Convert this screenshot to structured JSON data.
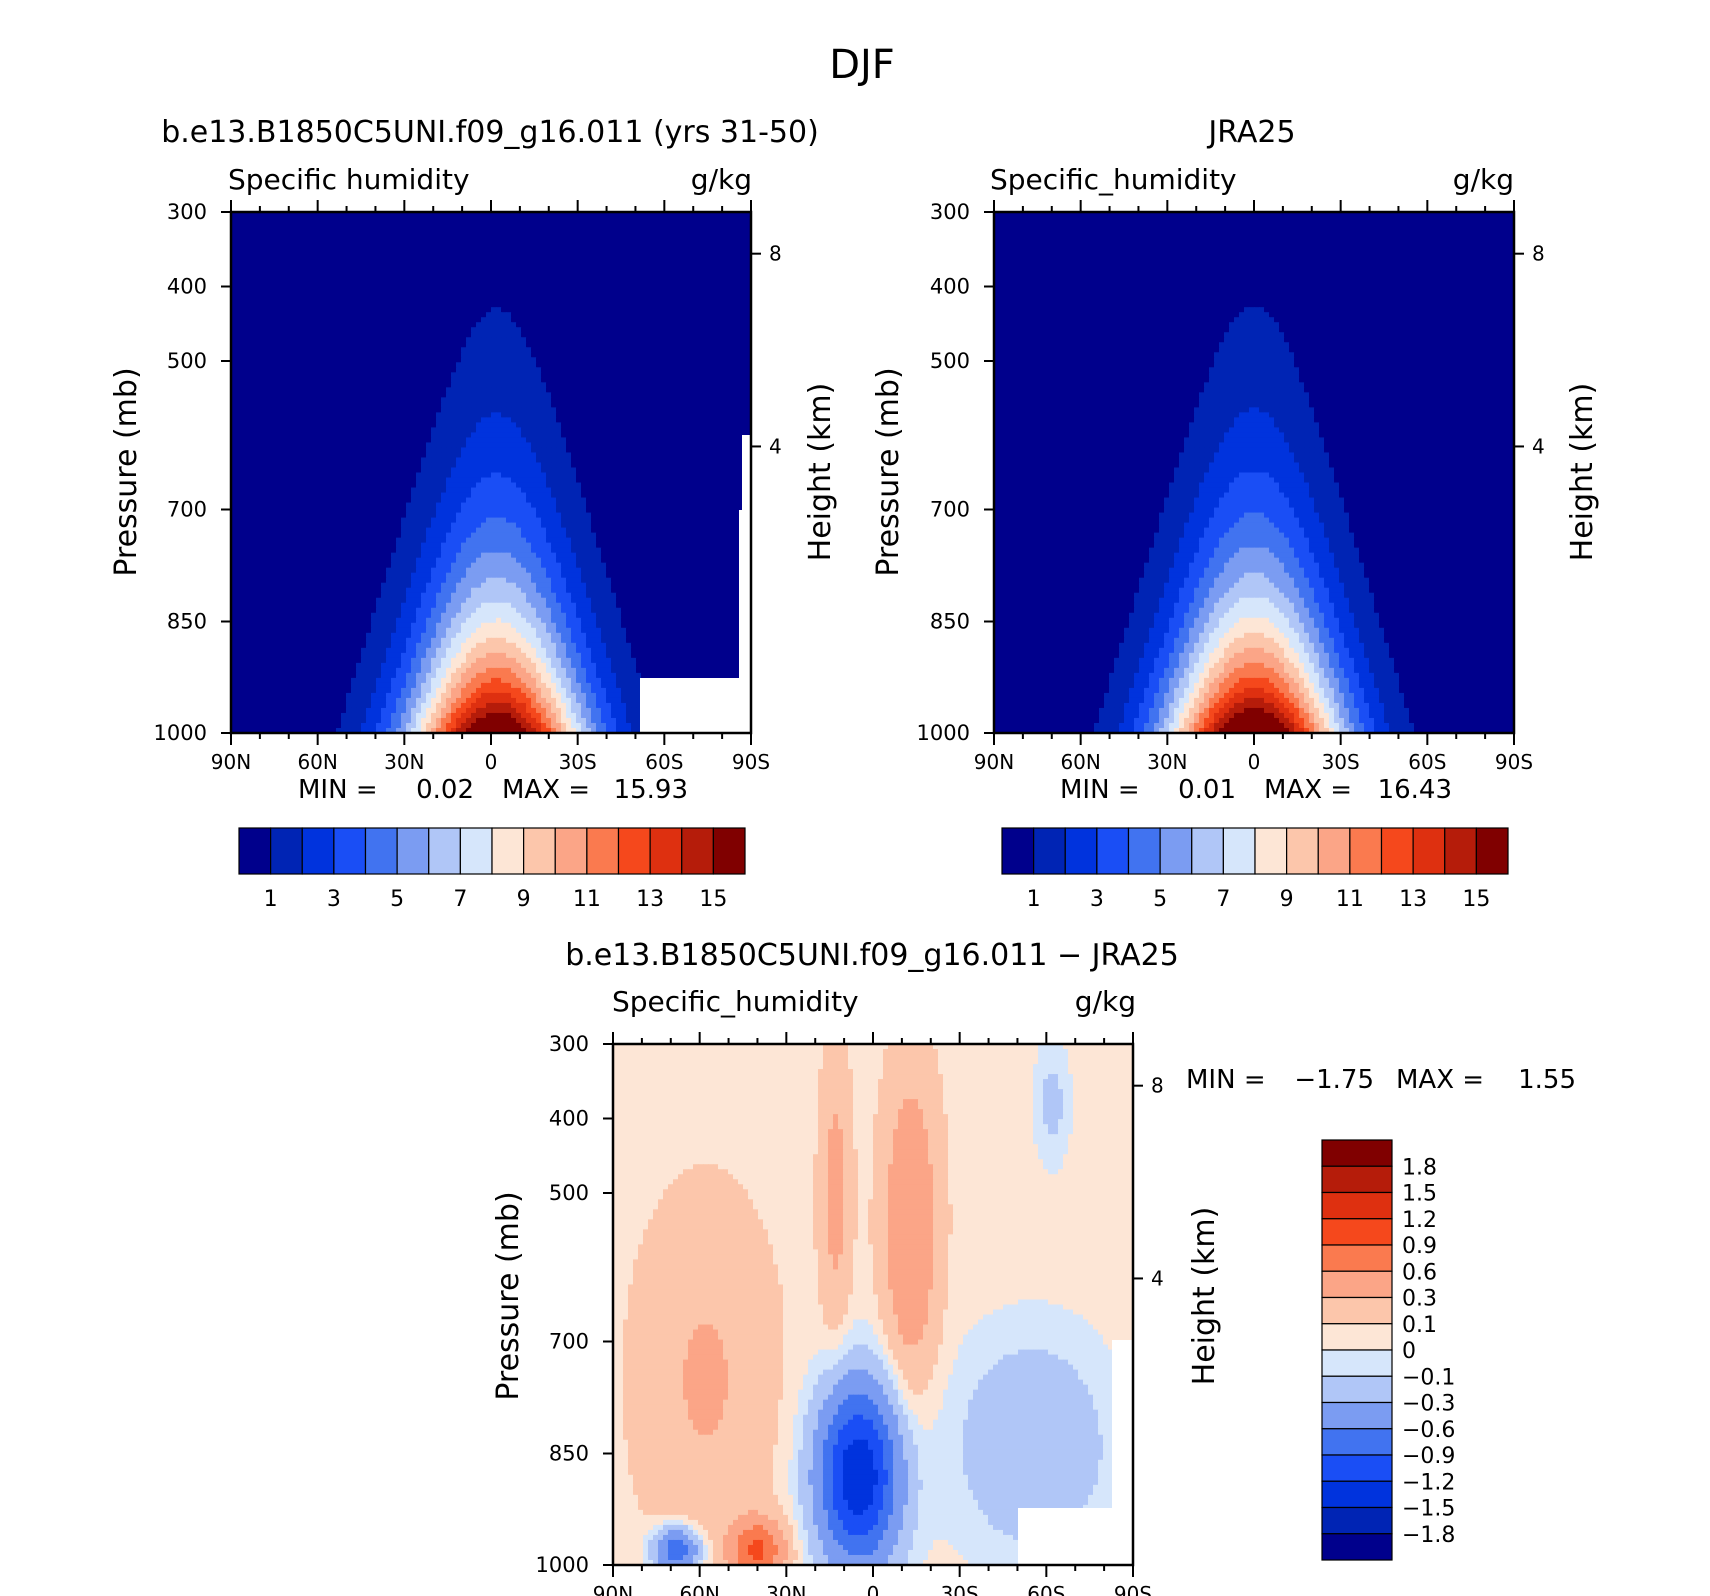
{
  "figure": {
    "title": "DJF"
  },
  "colors": {
    "seq": [
      "#00008c",
      "#0024b4",
      "#0033dd",
      "#1a4ef5",
      "#4173f0",
      "#7b9cf2",
      "#b0c6f7",
      "#d6e6fb",
      "#fde6d6",
      "#fcc6ab",
      "#fba587",
      "#fa7a4f",
      "#f5481c",
      "#de3010",
      "#b51c0a",
      "#800000"
    ],
    "div": [
      "#00008c",
      "#0024b4",
      "#0033dd",
      "#1a4ef5",
      "#4173f0",
      "#7b9cf2",
      "#b0c6f7",
      "#d6e6fb",
      "#fde6d6",
      "#fcc6ab",
      "#fba587",
      "#fa7a4f",
      "#f5481c",
      "#de3010",
      "#b51c0a",
      "#800000"
    ]
  },
  "chart_data": [
    {
      "type": "heatmap",
      "title": "b.e13.B1850C5UNI.f09_g16.011 (yrs 31-50)",
      "left_label": "Specific humidity",
      "right_label": "g/kg",
      "ylabel": "Pressure (mb)",
      "y2label": "Height (km)",
      "yticks": [
        "300",
        "400",
        "500",
        "700",
        "850",
        "1000"
      ],
      "y2ticks": [
        "8",
        "4"
      ],
      "xticks": [
        "90N",
        "60N",
        "30N",
        "0",
        "30S",
        "60S",
        "90S"
      ],
      "min_label": "MIN =",
      "min_value": "0.02",
      "max_label": "MAX =",
      "max_value": "15.93",
      "colorbar_labels": [
        "1",
        "3",
        "5",
        "7",
        "9",
        "11",
        "13",
        "15"
      ],
      "ylim": [
        1000,
        300
      ],
      "xlim": [
        90,
        -90
      ],
      "peak": {
        "lat": -2,
        "value": 15.93
      },
      "levels": [
        1,
        2,
        3,
        4,
        5,
        6,
        7,
        8,
        9,
        10,
        11,
        12,
        13,
        14,
        15
      ]
    },
    {
      "type": "heatmap",
      "title": "JRA25",
      "left_label": "Specific_humidity",
      "right_label": "g/kg",
      "ylabel": "Pressure (mb)",
      "y2label": "Height (km)",
      "yticks": [
        "300",
        "400",
        "500",
        "700",
        "850",
        "1000"
      ],
      "y2ticks": [
        "8",
        "4"
      ],
      "xticks": [
        "90N",
        "60N",
        "30N",
        "0",
        "30S",
        "60S",
        "90S"
      ],
      "min_label": "MIN =",
      "min_value": "0.01",
      "max_label": "MAX =",
      "max_value": "16.43",
      "colorbar_labels": [
        "1",
        "3",
        "5",
        "7",
        "9",
        "11",
        "13",
        "15"
      ],
      "ylim": [
        1000,
        300
      ],
      "xlim": [
        90,
        -90
      ],
      "peak": {
        "lat": 0,
        "value": 16.43
      },
      "levels": [
        1,
        2,
        3,
        4,
        5,
        6,
        7,
        8,
        9,
        10,
        11,
        12,
        13,
        14,
        15
      ]
    },
    {
      "type": "heatmap",
      "title": "b.e13.B1850C5UNI.f09_g16.011 − JRA25",
      "left_label": "Specific_humidity",
      "right_label": "g/kg",
      "ylabel": "Pressure (mb)",
      "y2label": "Height (km)",
      "yticks": [
        "300",
        "400",
        "500",
        "700",
        "850",
        "1000"
      ],
      "y2ticks": [
        "8",
        "4"
      ],
      "xticks": [
        "90N",
        "60N",
        "30N",
        "0",
        "30S",
        "60S",
        "90S"
      ],
      "min_label": "MIN =",
      "min_value": "−1.75",
      "max_label": "MAX =",
      "max_value": "1.55",
      "colorbar_labels": [
        "1.8",
        "1.5",
        "1.2",
        "0.9",
        "0.6",
        "0.3",
        "0.1",
        "0",
        "−0.1",
        "−0.3",
        "−0.6",
        "−0.9",
        "−1.2",
        "−1.5",
        "−1.8"
      ],
      "ylim": [
        1000,
        300
      ],
      "xlim": [
        90,
        -90
      ],
      "levels": [
        -1.8,
        -1.5,
        -1.2,
        -0.9,
        -0.6,
        -0.3,
        -0.1,
        0,
        0.1,
        0.3,
        0.6,
        0.9,
        1.2,
        1.5,
        1.8
      ]
    }
  ]
}
